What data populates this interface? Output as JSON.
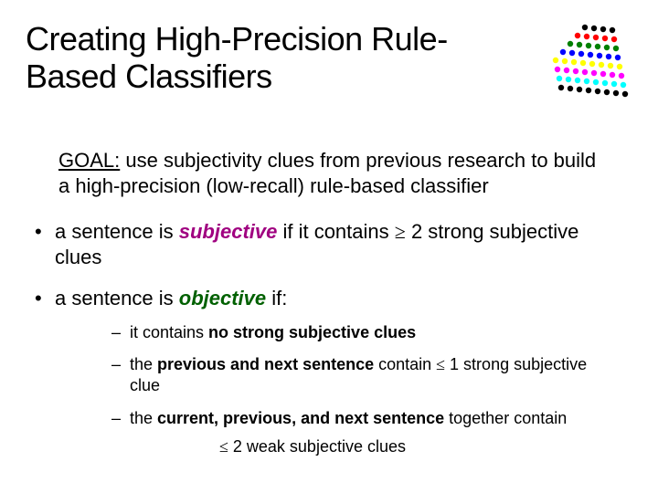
{
  "title_line1": "Creating High-Precision Rule-",
  "title_line2": "Based Classifiers",
  "goal_label": "GOAL:",
  "goal_text": " use subjectivity clues from previous research to build a high-precision (low-recall) rule-based classifier",
  "bullet1_pre": "a sentence is ",
  "bullet1_kw": "subjective",
  "bullet1_post_a": " if it contains ",
  "bullet1_sym": "≥",
  "bullet1_post_b": " 2 strong subjective clues",
  "bullet2_pre": "a sentence is ",
  "bullet2_kw": "objective",
  "bullet2_post": " if:",
  "sub1_a": "it contains ",
  "sub1_b": "no strong subjective clues",
  "sub2_a": "the ",
  "sub2_b": "previous and next sentence",
  "sub2_c": " contain ",
  "sub2_sym": "≤",
  "sub2_d": " 1 strong subjective clue",
  "sub3_a": "the ",
  "sub3_b": "current, previous, and next sentence",
  "sub3_c": " together contain",
  "sub3_sym": "≤",
  "sub3_d": " 2 weak subjective clues",
  "logo": {
    "cols": 8,
    "rows": 8,
    "dot_r": 3.2,
    "spacing": 10,
    "colors": [
      "#000000",
      "#ff0000",
      "#008000",
      "#0000ff",
      "#ffff00",
      "#ff00ff",
      "#00ffff",
      "#000000"
    ]
  },
  "colors": {
    "subjective": "#a00080",
    "objective": "#006000",
    "text": "#000000",
    "background": "#ffffff"
  },
  "fonts": {
    "title_size": 36,
    "body_size": 22,
    "sub_size": 18
  }
}
